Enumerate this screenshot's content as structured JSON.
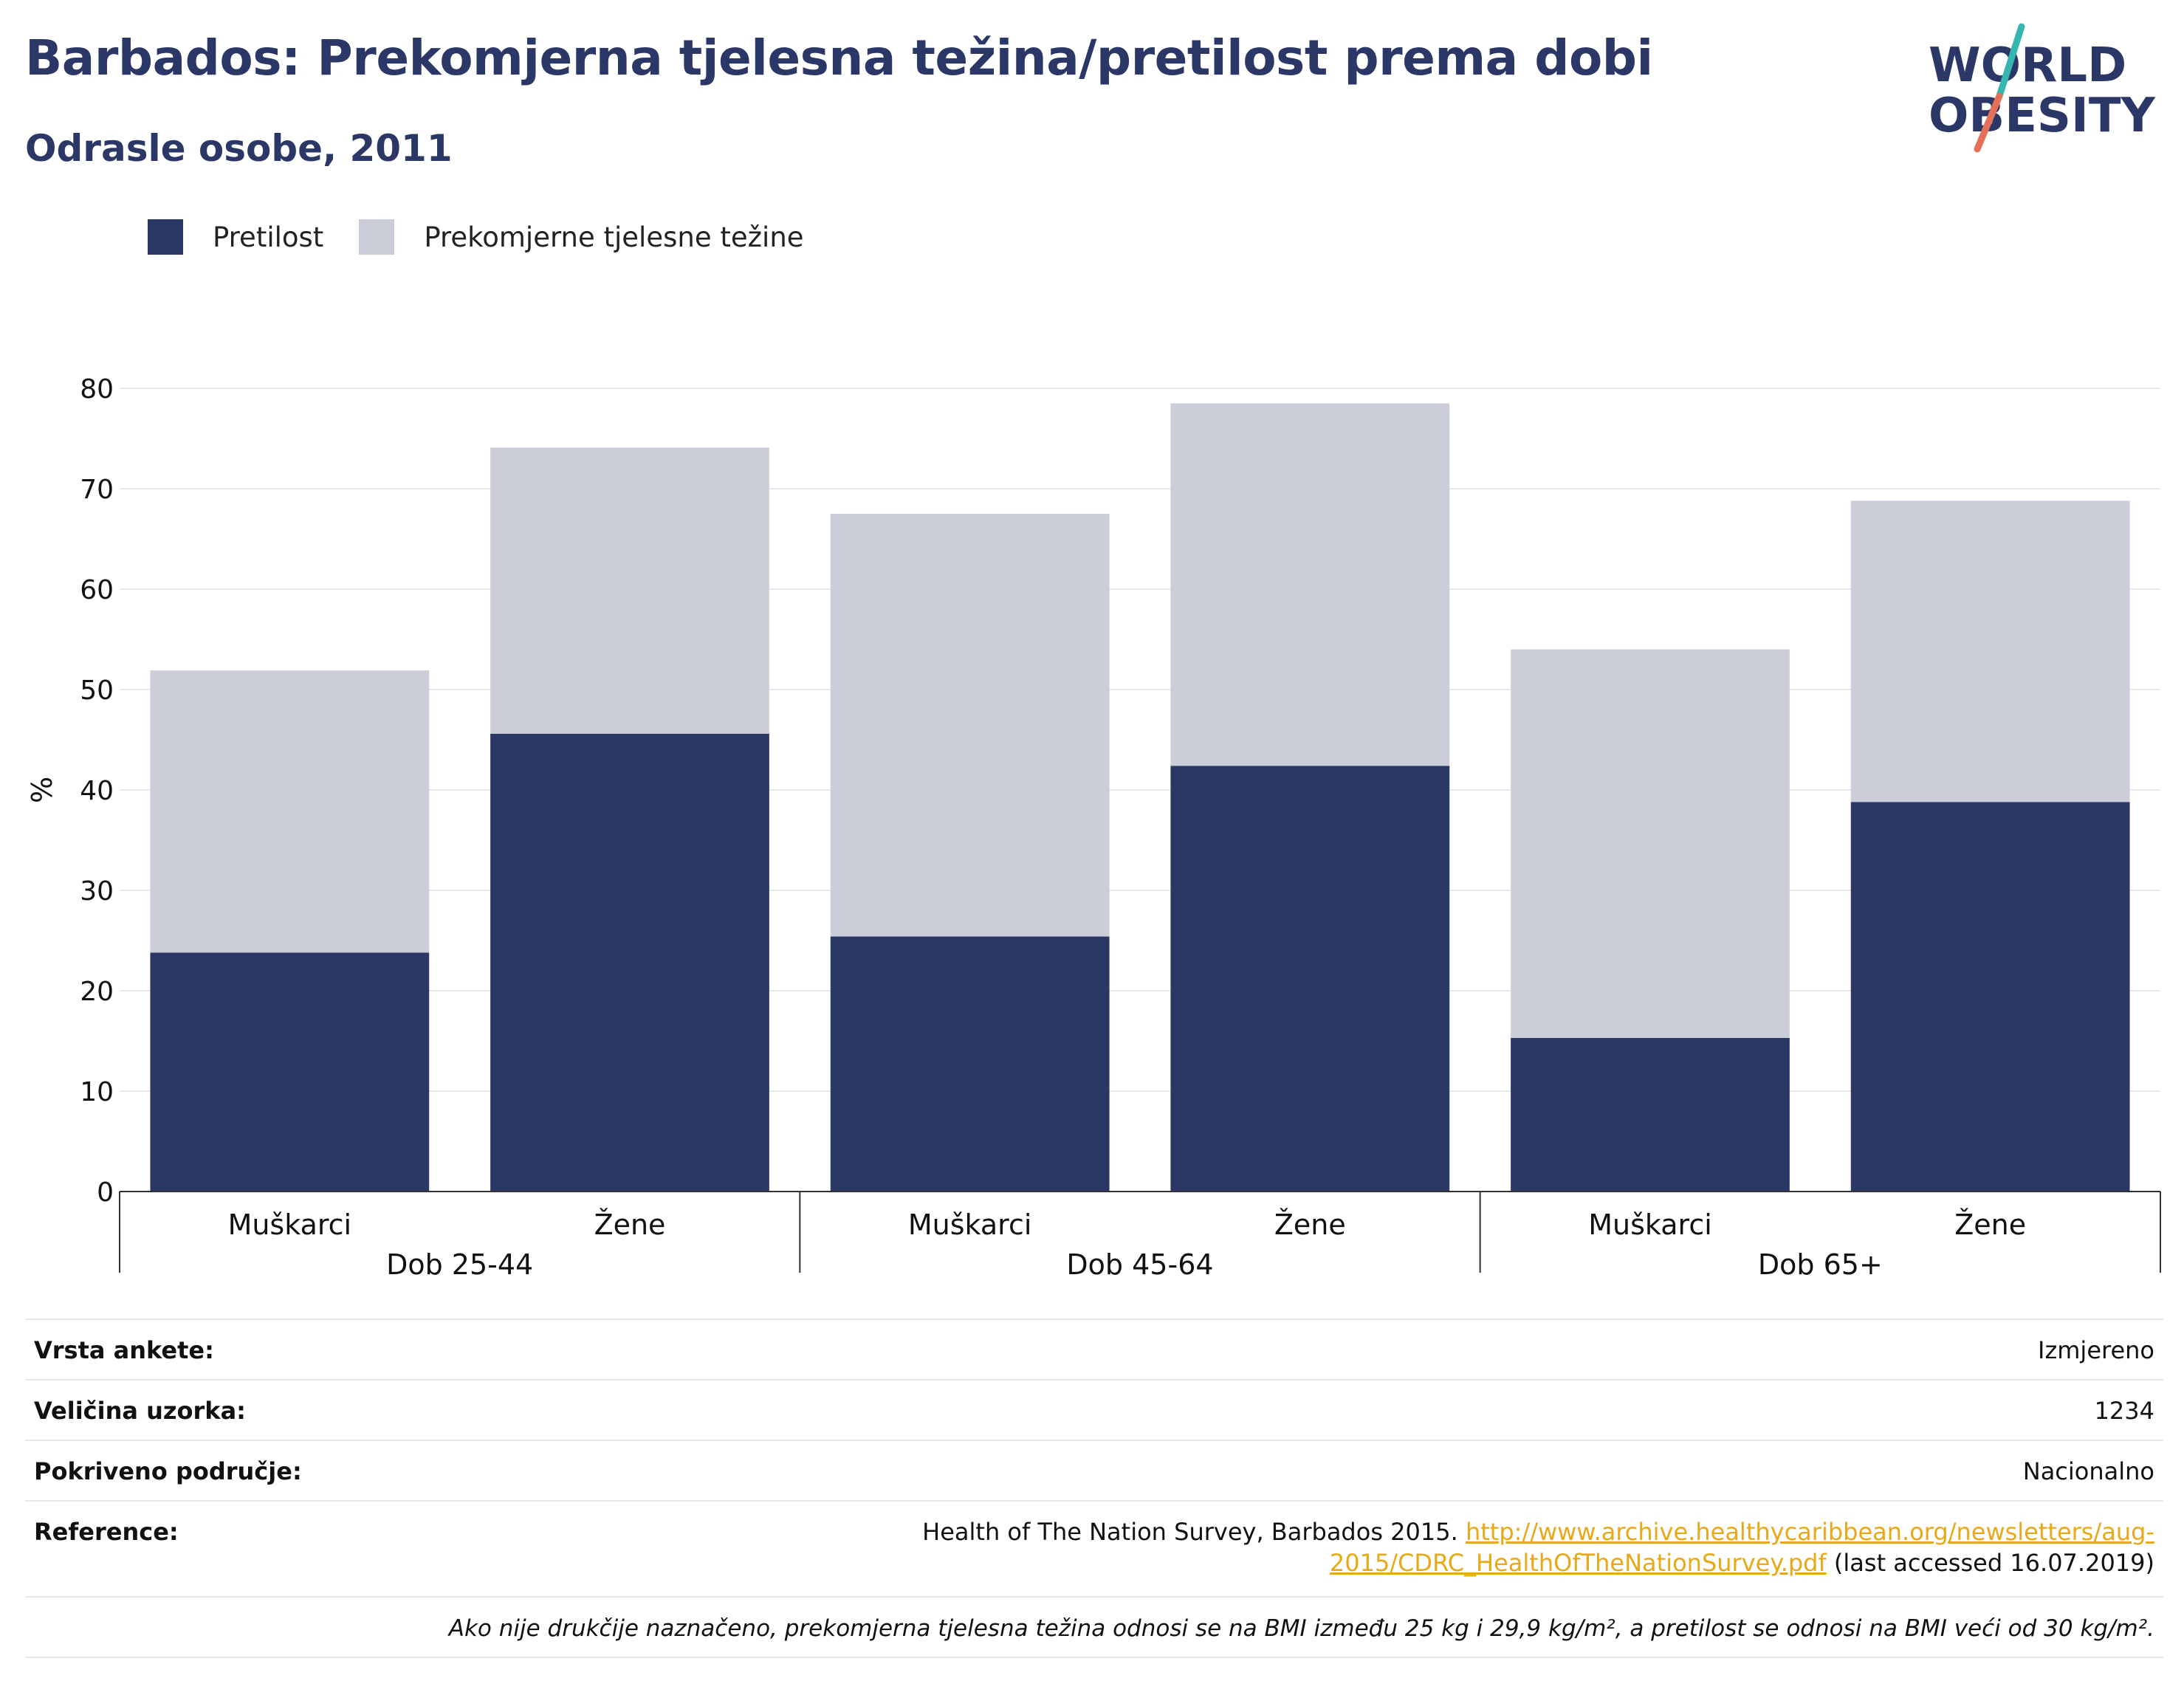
{
  "header": {
    "title": "Barbados: Prekomjerna tjelesna težina/pretilost prema dobi",
    "subtitle": "Odrasle osobe, 2011"
  },
  "logo": {
    "line1": "WORLD",
    "line2": "OBESITY"
  },
  "legend": [
    {
      "label": "Pretilost",
      "color": "#2b3764"
    },
    {
      "label": "Prekomjerne tjelesne težine",
      "color": "#cbcdd9"
    }
  ],
  "chart_data": {
    "type": "bar",
    "stacked": true,
    "ylabel": "%",
    "ylim": [
      0,
      80
    ],
    "yticks": [
      0,
      10,
      20,
      30,
      40,
      50,
      60,
      70,
      80
    ],
    "grid": true,
    "legend_position": "top-left",
    "groups": [
      {
        "label": "Dob 25-44",
        "categories": [
          "Muškarci",
          "Žene"
        ]
      },
      {
        "label": "Dob 45-64",
        "categories": [
          "Muškarci",
          "Žene"
        ]
      },
      {
        "label": "Dob 65+",
        "categories": [
          "Muškarci",
          "Žene"
        ]
      }
    ],
    "categories": [
      "Muškarci",
      "Žene",
      "Muškarci",
      "Žene",
      "Muškarci",
      "Žene"
    ],
    "series": [
      {
        "name": "Pretilost",
        "color": "#2b3764",
        "values": [
          23.8,
          45.6,
          25.4,
          42.4,
          15.3,
          38.8
        ]
      },
      {
        "name": "Prekomjerne tjelesne težine",
        "color": "#cbcdd9",
        "values": [
          28.1,
          28.5,
          42.1,
          36.1,
          38.7,
          30.0
        ]
      }
    ]
  },
  "info": {
    "survey_type": {
      "label": "Vrsta ankete:",
      "value": "Izmjereno"
    },
    "sample_size": {
      "label": "Veličina uzorka:",
      "value": "1234"
    },
    "coverage": {
      "label": "Pokriveno područje:",
      "value": "Nacionalno"
    },
    "reference": {
      "label": "Reference:",
      "text": "Health of The Nation Survey, Barbados 2015.",
      "link_line1": "http://www.archive.healthycaribbean.org/newsletters/aug-",
      "link_line2": "2015/CDRC_HealthOfTheNationSurvey.pdf",
      "suffix": "(last accessed 16.07.2019)"
    },
    "note": "Ako nije drukčije naznačeno, prekomjerna tjelesna težina odnosi se na BMI između 25 kg i 29,9 kg/m², a pretilost se odnosi na BMI veći od 30 kg/m²."
  }
}
